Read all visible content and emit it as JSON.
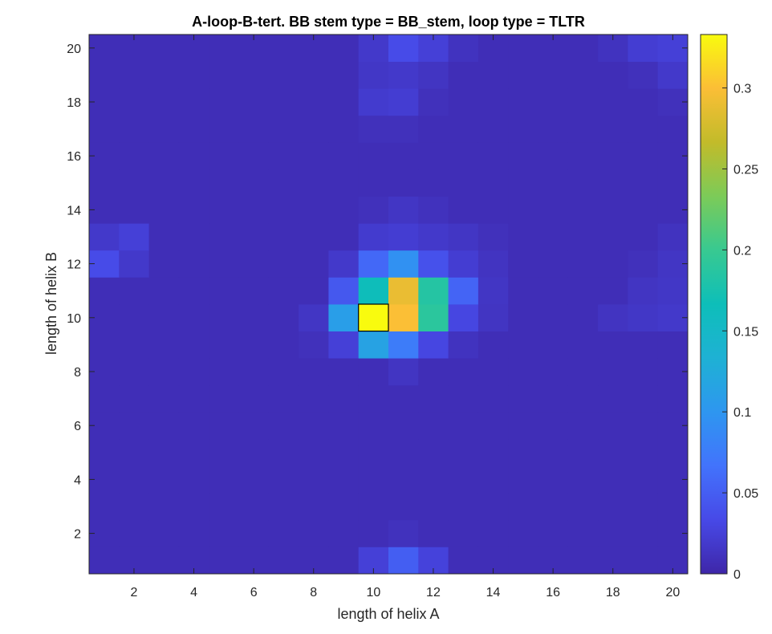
{
  "chart_data": {
    "type": "heatmap",
    "title": "A-loop-B-tert. BB stem type = BB_stem, loop type = TLTR",
    "xlabel": "length of helix A",
    "ylabel": "length of helix B",
    "x": [
      1,
      2,
      3,
      4,
      5,
      6,
      7,
      8,
      9,
      10,
      11,
      12,
      13,
      14,
      15,
      16,
      17,
      18,
      19,
      20
    ],
    "y": [
      1,
      2,
      3,
      4,
      5,
      6,
      7,
      8,
      9,
      10,
      11,
      12,
      13,
      14,
      15,
      16,
      17,
      18,
      19,
      20
    ],
    "xlim": [
      0.5,
      20.5
    ],
    "ylim": [
      0.5,
      20.5
    ],
    "xticks": [
      2,
      4,
      6,
      8,
      10,
      12,
      14,
      16,
      18,
      20
    ],
    "yticks": [
      2,
      4,
      6,
      8,
      10,
      12,
      14,
      16,
      18,
      20
    ],
    "colormap": "parula",
    "clim": [
      0,
      0.333
    ],
    "colorbar_ticks": [
      0,
      0.05,
      0.1,
      0.15,
      0.2,
      0.25,
      0.3
    ],
    "colorbar_tick_labels": [
      "0",
      "0.05",
      "0.1",
      "0.15",
      "0.2",
      "0.25",
      "0.3"
    ],
    "background_value": 0.008,
    "cells": [
      {
        "x": 10,
        "y": 1,
        "v": 0.025
      },
      {
        "x": 11,
        "y": 1,
        "v": 0.05
      },
      {
        "x": 12,
        "y": 1,
        "v": 0.027
      },
      {
        "x": 11,
        "y": 2,
        "v": 0.011
      },
      {
        "x": 11,
        "y": 8,
        "v": 0.014
      },
      {
        "x": 8,
        "y": 9,
        "v": 0.01
      },
      {
        "x": 9,
        "y": 9,
        "v": 0.025
      },
      {
        "x": 10,
        "y": 9,
        "v": 0.115
      },
      {
        "x": 11,
        "y": 9,
        "v": 0.075
      },
      {
        "x": 12,
        "y": 9,
        "v": 0.03
      },
      {
        "x": 13,
        "y": 9,
        "v": 0.012
      },
      {
        "x": 8,
        "y": 10,
        "v": 0.015
      },
      {
        "x": 9,
        "y": 10,
        "v": 0.11
      },
      {
        "x": 10,
        "y": 10,
        "v": 0.333
      },
      {
        "x": 11,
        "y": 10,
        "v": 0.3
      },
      {
        "x": 12,
        "y": 10,
        "v": 0.19
      },
      {
        "x": 13,
        "y": 10,
        "v": 0.03
      },
      {
        "x": 14,
        "y": 10,
        "v": 0.014
      },
      {
        "x": 18,
        "y": 10,
        "v": 0.013
      },
      {
        "x": 19,
        "y": 10,
        "v": 0.016
      },
      {
        "x": 20,
        "y": 10,
        "v": 0.018
      },
      {
        "x": 9,
        "y": 11,
        "v": 0.045
      },
      {
        "x": 10,
        "y": 11,
        "v": 0.165
      },
      {
        "x": 11,
        "y": 11,
        "v": 0.29
      },
      {
        "x": 12,
        "y": 11,
        "v": 0.185
      },
      {
        "x": 13,
        "y": 11,
        "v": 0.055
      },
      {
        "x": 14,
        "y": 11,
        "v": 0.015
      },
      {
        "x": 19,
        "y": 11,
        "v": 0.014
      },
      {
        "x": 20,
        "y": 11,
        "v": 0.016
      },
      {
        "x": 1,
        "y": 12,
        "v": 0.035
      },
      {
        "x": 2,
        "y": 12,
        "v": 0.018
      },
      {
        "x": 9,
        "y": 12,
        "v": 0.018
      },
      {
        "x": 10,
        "y": 12,
        "v": 0.058
      },
      {
        "x": 11,
        "y": 12,
        "v": 0.095
      },
      {
        "x": 12,
        "y": 12,
        "v": 0.04
      },
      {
        "x": 13,
        "y": 12,
        "v": 0.022
      },
      {
        "x": 14,
        "y": 12,
        "v": 0.013
      },
      {
        "x": 19,
        "y": 12,
        "v": 0.01
      },
      {
        "x": 20,
        "y": 12,
        "v": 0.015
      },
      {
        "x": 1,
        "y": 13,
        "v": 0.018
      },
      {
        "x": 2,
        "y": 13,
        "v": 0.025
      },
      {
        "x": 10,
        "y": 13,
        "v": 0.02
      },
      {
        "x": 11,
        "y": 13,
        "v": 0.022
      },
      {
        "x": 12,
        "y": 13,
        "v": 0.018
      },
      {
        "x": 13,
        "y": 13,
        "v": 0.015
      },
      {
        "x": 14,
        "y": 13,
        "v": 0.01
      },
      {
        "x": 20,
        "y": 13,
        "v": 0.012
      },
      {
        "x": 10,
        "y": 14,
        "v": 0.01
      },
      {
        "x": 11,
        "y": 14,
        "v": 0.015
      },
      {
        "x": 12,
        "y": 14,
        "v": 0.011
      },
      {
        "x": 10,
        "y": 17,
        "v": 0.01
      },
      {
        "x": 11,
        "y": 17,
        "v": 0.01
      },
      {
        "x": 10,
        "y": 18,
        "v": 0.02
      },
      {
        "x": 11,
        "y": 18,
        "v": 0.022
      },
      {
        "x": 12,
        "y": 18,
        "v": 0.01
      },
      {
        "x": 20,
        "y": 18,
        "v": 0.01
      },
      {
        "x": 10,
        "y": 19,
        "v": 0.016
      },
      {
        "x": 11,
        "y": 19,
        "v": 0.018
      },
      {
        "x": 12,
        "y": 19,
        "v": 0.014
      },
      {
        "x": 19,
        "y": 19,
        "v": 0.01
      },
      {
        "x": 20,
        "y": 19,
        "v": 0.018
      },
      {
        "x": 10,
        "y": 20,
        "v": 0.018
      },
      {
        "x": 11,
        "y": 20,
        "v": 0.035
      },
      {
        "x": 12,
        "y": 20,
        "v": 0.025
      },
      {
        "x": 13,
        "y": 20,
        "v": 0.012
      },
      {
        "x": 18,
        "y": 20,
        "v": 0.012
      },
      {
        "x": 19,
        "y": 20,
        "v": 0.022
      },
      {
        "x": 20,
        "y": 20,
        "v": 0.025
      }
    ],
    "highlighted_cell": {
      "x": 10,
      "y": 10
    }
  }
}
